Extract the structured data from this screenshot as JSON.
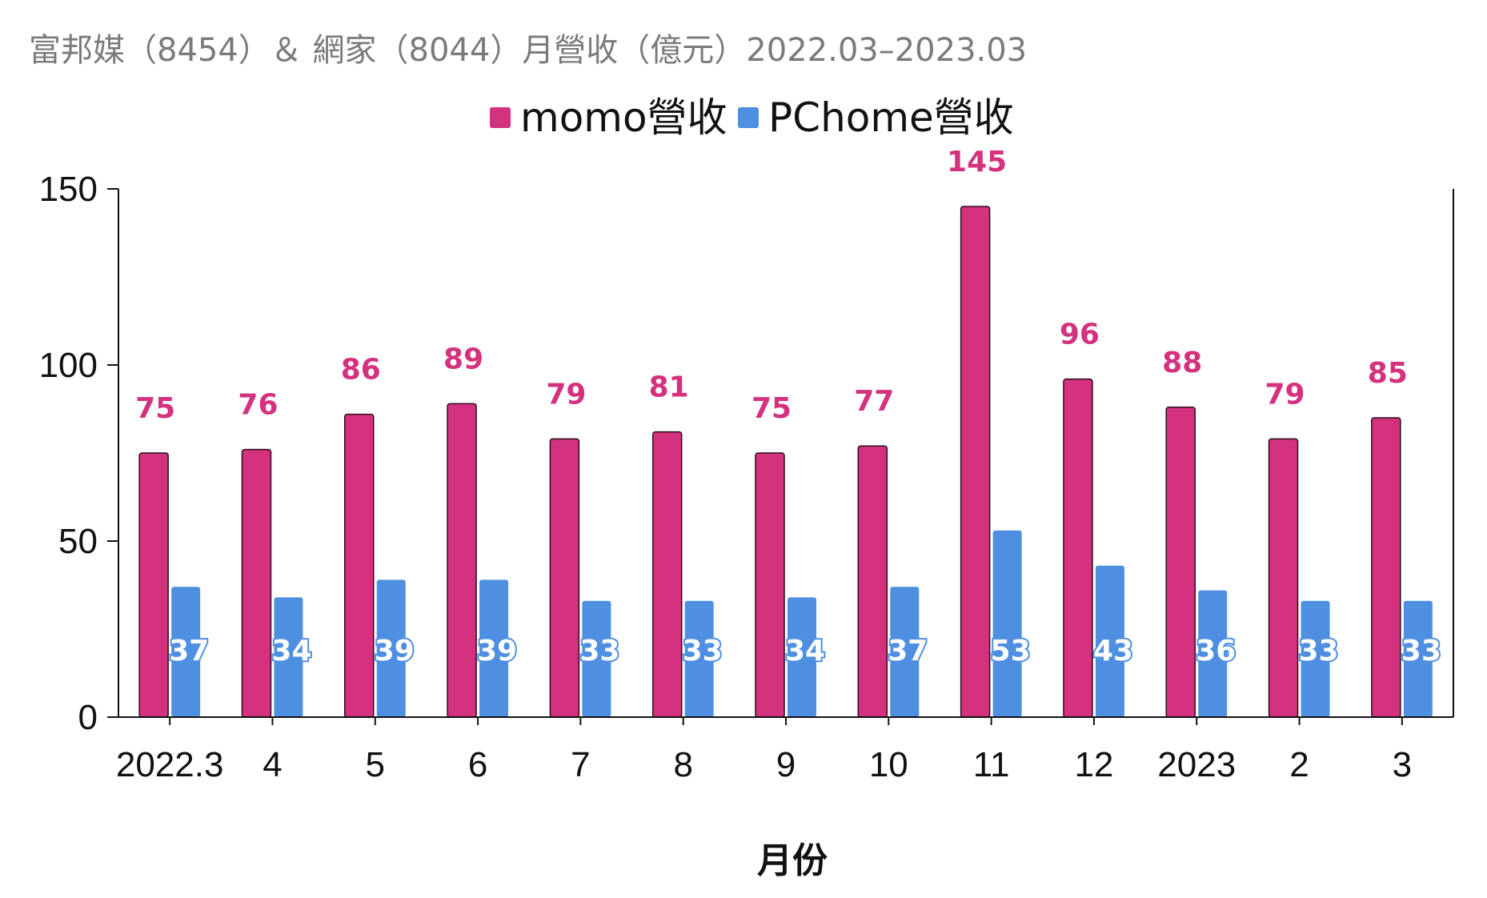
{
  "colors": {
    "momo": "#d4317f",
    "pchome": "#4f8fe2",
    "axis": "#111111",
    "title": "#7a7a7a"
  },
  "chart_data": {
    "type": "bar",
    "title": "富邦媒（8454）＆ 網家（8044）月營收（億元）2022.03–2023.03",
    "xlabel": "月份",
    "ylabel": "",
    "ylim": [
      0,
      150
    ],
    "yticks": [
      0,
      50,
      100,
      150
    ],
    "legend_position": "top-center",
    "grid": false,
    "categories": [
      "2022.3",
      "4",
      "5",
      "6",
      "7",
      "8",
      "9",
      "10",
      "11",
      "12",
      "2023",
      "2",
      "3"
    ],
    "series": [
      {
        "name": "momo營收",
        "values": [
          75,
          76,
          86,
          89,
          79,
          81,
          75,
          77,
          145,
          96,
          88,
          79,
          85
        ]
      },
      {
        "name": "PChome營收",
        "values": [
          37,
          34,
          39,
          39,
          33,
          33,
          34,
          37,
          53,
          43,
          36,
          33,
          33
        ]
      }
    ]
  }
}
